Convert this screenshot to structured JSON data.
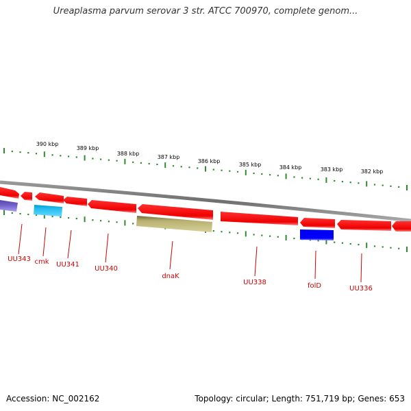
{
  "title": "Ureaplasma parvum serovar 3 str. ATCC 700970, complete genom...",
  "footer": {
    "accession": "Accession: NC_002162",
    "summary": "Topology: circular; Length: 751,719 bp; Genes: 653"
  },
  "colors": {
    "backbone": "#808080",
    "tick": "#2e8b2e",
    "scale_label": "#000000",
    "gene_label": "#cc0000",
    "gene_red": "#ff0000",
    "gene_cyan": "#22bbee",
    "gene_khaki": "#bdb76b",
    "gene_blue": "#0000ff",
    "gene_purple": "#7766cc"
  },
  "scale_labels": [
    "390 kbp",
    "389 kbp",
    "388 kbp",
    "387 kbp",
    "386 kbp",
    "385 kbp",
    "384 kbp",
    "383 kbp",
    "382 kbp"
  ],
  "gene_labels": [
    "UU343",
    "cmk",
    "UU341",
    "UU340",
    "dnaK",
    "UU338",
    "folD",
    "UU336"
  ]
}
